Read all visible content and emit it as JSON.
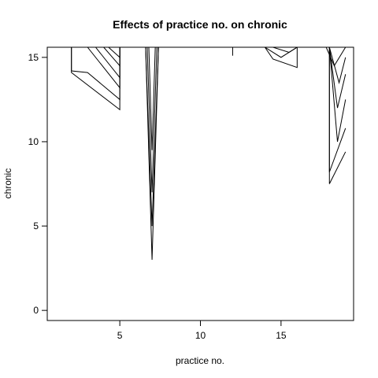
{
  "chart_data": {
    "type": "line",
    "title": "Effects of practice no. on chronic",
    "xlabel": "practice no.",
    "ylabel": "chronic",
    "xlim": [
      0.5,
      19.5
    ],
    "ylim": [
      -0.6,
      15.6
    ],
    "xticks": [
      5,
      10,
      15
    ],
    "yticks": [
      0,
      5,
      10,
      15
    ],
    "xtick_labels": [
      "5",
      "10",
      "15"
    ],
    "ytick_labels": [
      "0",
      "5",
      "10",
      "15"
    ],
    "grid": false,
    "legend": "none",
    "colors": {
      "lines": "#000000",
      "background": "#ffffff"
    },
    "series": [
      {
        "x": [
          2,
          2,
          5,
          5
        ],
        "y": [
          15.6,
          14.1,
          11.9,
          15.6
        ]
      },
      {
        "x": [
          2,
          2,
          3,
          5,
          5
        ],
        "y": [
          15.6,
          14.2,
          14.1,
          12.5,
          15.6
        ]
      },
      {
        "x": [
          3,
          5,
          5
        ],
        "y": [
          15.6,
          13.2,
          15.6
        ]
      },
      {
        "x": [
          3.5,
          5,
          5
        ],
        "y": [
          15.6,
          13.8,
          15.6
        ]
      },
      {
        "x": [
          4,
          5,
          5
        ],
        "y": [
          15.6,
          14.5,
          15.6
        ]
      },
      {
        "x": [
          4.3,
          5,
          5
        ],
        "y": [
          15.6,
          15,
          15.6
        ]
      },
      {
        "x": [
          6.5,
          6.6,
          7,
          7.4,
          7.5
        ],
        "y": [
          15.6,
          15.6,
          3,
          15.6,
          15.6
        ]
      },
      {
        "x": [
          6.6,
          7,
          7.4
        ],
        "y": [
          15.6,
          5,
          15.6
        ]
      },
      {
        "x": [
          6.7,
          7,
          7.3
        ],
        "y": [
          15.6,
          7,
          15.6
        ]
      },
      {
        "x": [
          6.8,
          7,
          7.2
        ],
        "y": [
          15.6,
          9.5,
          15.6
        ]
      },
      {
        "x": [
          12,
          12
        ],
        "y": [
          15.6,
          15.1
        ]
      },
      {
        "x": [
          14,
          14.5,
          16,
          16
        ],
        "y": [
          15.6,
          14.9,
          14.4,
          15.6
        ]
      },
      {
        "x": [
          14,
          15,
          16
        ],
        "y": [
          15.6,
          15.0,
          15.6
        ]
      },
      {
        "x": [
          14.5,
          15.5,
          16
        ],
        "y": [
          15.6,
          15.3,
          15.6
        ]
      },
      {
        "x": [
          18,
          18,
          19
        ],
        "y": [
          15.6,
          7.5,
          9.4
        ]
      },
      {
        "x": [
          18,
          18,
          19
        ],
        "y": [
          15.6,
          8.2,
          10.8
        ]
      },
      {
        "x": [
          18,
          18.5,
          19
        ],
        "y": [
          15.6,
          10.0,
          12.5
        ]
      },
      {
        "x": [
          18,
          18.5,
          19
        ],
        "y": [
          15.6,
          12.0,
          14.0
        ]
      },
      {
        "x": [
          18,
          18.6,
          19
        ],
        "y": [
          15.6,
          13.5,
          15.0
        ]
      },
      {
        "x": [
          17.8,
          18.3,
          19
        ],
        "y": [
          15.6,
          14.5,
          15.6
        ]
      }
    ]
  }
}
